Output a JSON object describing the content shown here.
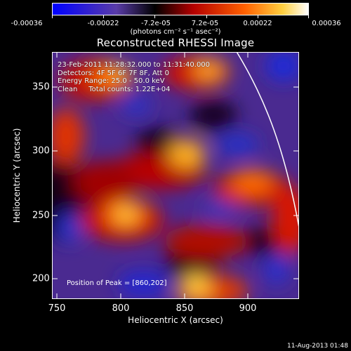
{
  "colorbar": {
    "labels": [
      "-0.00036",
      "-0.00022",
      "-7.2e-05",
      "7.2e-05",
      "0.00022",
      "0.00036"
    ],
    "unit": "(photons cm⁻² s⁻¹ asec⁻²)"
  },
  "title": "Reconstructed RHESSI Image",
  "info": {
    "time": "23-Feb-2011 11:28:32.000 to 11:31:40.000",
    "detectors": "Detectors: 4F 5F 6F 7F 8F, Att 0",
    "energy": "Energy Range: 25.0 - 50.0 keV",
    "clean": "Clean     Total counts: 1.22E+04"
  },
  "peak": "Position of Peak = [860,202]",
  "date": "11-Aug-2013 01:48",
  "axes": {
    "xlabel": "Heliocentric X (arcsec)",
    "ylabel": "Heliocentric Y (arcsec)",
    "xticks": [
      "750",
      "800",
      "850",
      "900"
    ],
    "yticks": [
      "200",
      "250",
      "300",
      "350"
    ],
    "xlim": [
      746,
      940
    ],
    "ylim": [
      186,
      380
    ]
  },
  "colors": {
    "scale": [
      "#0000ff",
      "#5a3ca8",
      "#000000",
      "#b40000",
      "#ff6000",
      "#ffd040",
      "#ffffff"
    ]
  }
}
